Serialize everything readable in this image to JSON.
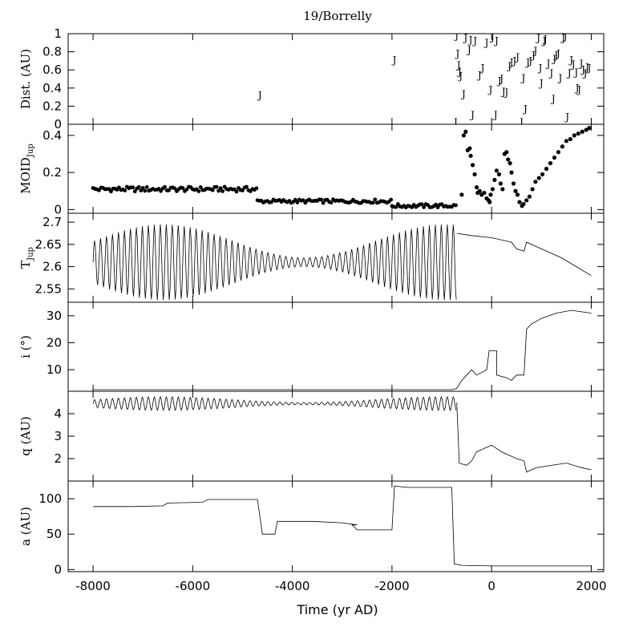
{
  "chart_data": {
    "type": "line",
    "title": "19/Borrelly",
    "xlabel": "Time (yr AD)",
    "xlim": [
      -8500,
      2250
    ],
    "x_ticks": [
      -8000,
      -6000,
      -4000,
      -2000,
      0,
      2000
    ],
    "x_tick_labels": [
      "-8000",
      "-6000",
      "-4000",
      "-2000",
      "0",
      "2000"
    ],
    "panels": [
      {
        "id": "dist",
        "ylabel": "Dist. (AU)",
        "ylim": [
          0,
          1
        ],
        "y_ticks": [
          0,
          0.2,
          0.4,
          0.6,
          0.8,
          1
        ],
        "y_tick_labels": [
          "0",
          "0.2",
          "0.4",
          "0.6",
          "0.8",
          "1"
        ],
        "marker": "J",
        "points": [
          [
            -4650,
            0.32
          ],
          [
            -1950,
            0.71
          ],
          [
            -720,
            0.02
          ],
          [
            -700,
            0.98
          ],
          [
            -680,
            0.78
          ],
          [
            -660,
            0.65
          ],
          [
            -640,
            0.58
          ],
          [
            -620,
            0.53
          ],
          [
            -560,
            0.33
          ],
          [
            -520,
            0.95
          ],
          [
            -450,
            0.82
          ],
          [
            -420,
            0.93
          ],
          [
            -380,
            0.1
          ],
          [
            -330,
            0.92
          ],
          [
            -240,
            0.54
          ],
          [
            -180,
            0.62
          ],
          [
            -100,
            0.9
          ],
          [
            -20,
            0.38
          ],
          [
            20,
            0.96
          ],
          [
            80,
            0.1
          ],
          [
            100,
            0.92
          ],
          [
            160,
            0.48
          ],
          [
            200,
            0.5
          ],
          [
            240,
            0.36
          ],
          [
            300,
            0.35
          ],
          [
            360,
            0.64
          ],
          [
            400,
            0.68
          ],
          [
            460,
            0.7
          ],
          [
            520,
            0.74
          ],
          [
            600,
            0.02
          ],
          [
            640,
            0.51
          ],
          [
            680,
            0.17
          ],
          [
            730,
            0.68
          ],
          [
            780,
            0.7
          ],
          [
            840,
            0.76
          ],
          [
            880,
            0.81
          ],
          [
            940,
            0.95
          ],
          [
            980,
            0.62
          ],
          [
            1000,
            0.45
          ],
          [
            1060,
            0.92
          ],
          [
            1080,
            0.94
          ],
          [
            1140,
            0.67
          ],
          [
            1200,
            0.56
          ],
          [
            1240,
            0.28
          ],
          [
            1260,
            0.72
          ],
          [
            1300,
            0.76
          ],
          [
            1340,
            0.78
          ],
          [
            1380,
            0.51
          ],
          [
            1440,
            0.95
          ],
          [
            1480,
            0.97
          ],
          [
            1520,
            0.08
          ],
          [
            1560,
            0.56
          ],
          [
            1600,
            0.71
          ],
          [
            1640,
            0.66
          ],
          [
            1700,
            0.57
          ],
          [
            1720,
            0.4
          ],
          [
            1760,
            0.38
          ],
          [
            1800,
            0.67
          ],
          [
            1840,
            0.6
          ],
          [
            1880,
            0.56
          ],
          [
            1920,
            0.63
          ],
          [
            1960,
            0.62
          ]
        ]
      },
      {
        "id": "moid",
        "ylabel": "MOID",
        "ylabel_sub": "Jup",
        "ylim": [
          -0.02,
          0.46
        ],
        "y_ticks": [
          0,
          0.2,
          0.4
        ],
        "y_tick_labels": [
          "0",
          "0.2",
          "0.4"
        ],
        "marker": "dot",
        "segments": [
          {
            "x0": -8000,
            "x1": -4700,
            "y": 0.11,
            "amp": 0.013
          },
          {
            "x0": -4700,
            "x1": -2000,
            "y": 0.045,
            "amp": 0.01
          },
          {
            "x0": -2000,
            "x1": -700,
            "y": 0.02,
            "amp": 0.01
          }
        ],
        "points": [
          [
            -600,
            0.08
          ],
          [
            -560,
            0.4
          ],
          [
            -520,
            0.42
          ],
          [
            -480,
            0.32
          ],
          [
            -440,
            0.33
          ],
          [
            -420,
            0.29
          ],
          [
            -380,
            0.24
          ],
          [
            -340,
            0.19
          ],
          [
            -300,
            0.12
          ],
          [
            -280,
            0.09
          ],
          [
            -240,
            0.1
          ],
          [
            -200,
            0.08
          ],
          [
            -150,
            0.09
          ],
          [
            -100,
            0.06
          ],
          [
            -60,
            0.05
          ],
          [
            -40,
            0.04
          ],
          [
            -20,
            0.08
          ],
          [
            20,
            0.11
          ],
          [
            60,
            0.16
          ],
          [
            100,
            0.21
          ],
          [
            150,
            0.19
          ],
          [
            180,
            0.14
          ],
          [
            220,
            0.11
          ],
          [
            260,
            0.3
          ],
          [
            300,
            0.31
          ],
          [
            330,
            0.27
          ],
          [
            370,
            0.25
          ],
          [
            400,
            0.2
          ],
          [
            440,
            0.14
          ],
          [
            480,
            0.1
          ],
          [
            520,
            0.08
          ],
          [
            560,
            0.04
          ],
          [
            610,
            0.02
          ],
          [
            640,
            0.03
          ],
          [
            700,
            0.05
          ],
          [
            760,
            0.07
          ],
          [
            820,
            0.11
          ],
          [
            880,
            0.15
          ],
          [
            950,
            0.17
          ],
          [
            1020,
            0.19
          ],
          [
            1100,
            0.22
          ],
          [
            1180,
            0.25
          ],
          [
            1260,
            0.28
          ],
          [
            1340,
            0.31
          ],
          [
            1420,
            0.34
          ],
          [
            1500,
            0.37
          ],
          [
            1580,
            0.38
          ],
          [
            1660,
            0.4
          ],
          [
            1740,
            0.41
          ],
          [
            1820,
            0.42
          ],
          [
            1900,
            0.43
          ],
          [
            1960,
            0.44
          ]
        ]
      },
      {
        "id": "tjup",
        "ylabel": "T",
        "ylabel_sub": "Jup",
        "ylim": [
          2.52,
          2.72
        ],
        "y_ticks": [
          2.55,
          2.6,
          2.65,
          2.7
        ],
        "y_tick_labels": [
          "2.55",
          "2.6",
          "2.65",
          "2.7"
        ],
        "osc": {
          "x0": -8000,
          "x1": -700,
          "mean": 2.61,
          "amp_min": 0.01,
          "amp_max": 0.085,
          "period": 120
        },
        "tail": [
          [
            -700,
            2.675
          ],
          [
            -400,
            2.67
          ],
          [
            0,
            2.665
          ],
          [
            400,
            2.655
          ],
          [
            500,
            2.64
          ],
          [
            650,
            2.635
          ],
          [
            700,
            2.655
          ],
          [
            1000,
            2.64
          ],
          [
            1400,
            2.62
          ],
          [
            1700,
            2.6
          ],
          [
            2000,
            2.58
          ]
        ]
      },
      {
        "id": "incl",
        "ylabel": "i (°)",
        "ylim": [
          2,
          35
        ],
        "y_ticks": [
          10,
          20,
          30
        ],
        "y_tick_labels": [
          "10",
          "20",
          "30"
        ],
        "line": [
          [
            -8000,
            2.6
          ],
          [
            -800,
            2.6
          ],
          [
            -700,
            3
          ],
          [
            -600,
            6
          ],
          [
            -500,
            8
          ],
          [
            -400,
            10
          ],
          [
            -300,
            8
          ],
          [
            -100,
            10
          ],
          [
            -50,
            17
          ],
          [
            100,
            17
          ],
          [
            100,
            8
          ],
          [
            300,
            7
          ],
          [
            400,
            6
          ],
          [
            500,
            8
          ],
          [
            650,
            8
          ],
          [
            700,
            25
          ],
          [
            800,
            27
          ],
          [
            1000,
            29
          ],
          [
            1300,
            31
          ],
          [
            1600,
            32
          ],
          [
            2000,
            31
          ]
        ]
      },
      {
        "id": "q",
        "ylabel": "q (AU)",
        "ylim": [
          1,
          5
        ],
        "y_ticks": [
          2,
          3,
          4
        ],
        "y_tick_labels": [
          "2",
          "3",
          "4"
        ],
        "osc": {
          "x0": -8000,
          "x1": -700,
          "mean": 4.45,
          "amp_min": 0.05,
          "amp_max": 0.3,
          "period": 120
        },
        "line": [
          [
            -700,
            4.5
          ],
          [
            -650,
            1.8
          ],
          [
            -500,
            1.7
          ],
          [
            -400,
            1.9
          ],
          [
            -300,
            2.3
          ],
          [
            -200,
            2.4
          ],
          [
            0,
            2.6
          ],
          [
            200,
            2.3
          ],
          [
            500,
            2.0
          ],
          [
            650,
            1.9
          ],
          [
            700,
            1.4
          ],
          [
            900,
            1.6
          ],
          [
            1200,
            1.7
          ],
          [
            1500,
            1.8
          ],
          [
            1800,
            1.6
          ],
          [
            2000,
            1.5
          ]
        ]
      },
      {
        "id": "a",
        "ylabel": "a (AU)",
        "ylim": [
          -3,
          125
        ],
        "y_ticks": [
          0,
          50,
          100
        ],
        "y_tick_labels": [
          "0",
          "50",
          "100"
        ],
        "line": [
          [
            -8000,
            89
          ],
          [
            -7200,
            89
          ],
          [
            -6600,
            90
          ],
          [
            -6500,
            94
          ],
          [
            -5800,
            95
          ],
          [
            -5700,
            99
          ],
          [
            -4700,
            99
          ],
          [
            -4600,
            50
          ],
          [
            -4350,
            50
          ],
          [
            -4300,
            68
          ],
          [
            -3600,
            68
          ],
          [
            -3000,
            66
          ],
          [
            -2700,
            63
          ],
          [
            -2800,
            63
          ],
          [
            -2700,
            56
          ],
          [
            -2000,
            56
          ],
          [
            -1950,
            118
          ],
          [
            -1700,
            116
          ],
          [
            -800,
            116
          ],
          [
            -750,
            8
          ],
          [
            -600,
            6
          ],
          [
            0,
            5
          ],
          [
            500,
            5
          ],
          [
            2000,
            5
          ]
        ]
      }
    ]
  }
}
